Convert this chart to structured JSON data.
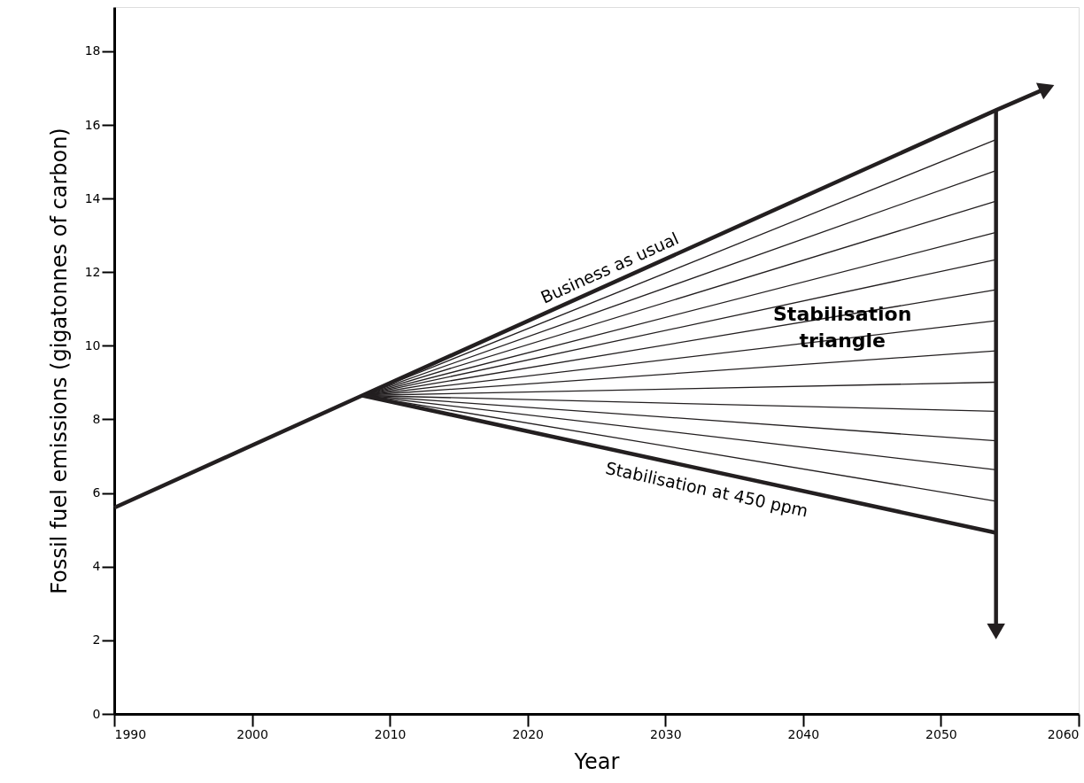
{
  "chart_data": {
    "type": "line",
    "xlabel": "Year",
    "ylabel": "Fossil fuel emissions (gigatonnes of carbon)",
    "xlim": [
      1990,
      2060
    ],
    "ylim": [
      0,
      19.2
    ],
    "xticks": [
      1990,
      2000,
      2010,
      2020,
      2030,
      2040,
      2050,
      2060
    ],
    "yticks": [
      0,
      2,
      4,
      6,
      8,
      10,
      12,
      14,
      16,
      18
    ],
    "grid": false,
    "line_style": "solid",
    "annotations": [
      "Stabilisation\ntriangle"
    ],
    "series": [
      {
        "name": "Business as usual",
        "color": "#231f20",
        "x": [
          1990,
          2008,
          2054,
          2057.7
        ],
        "values": [
          5.6,
          8.65,
          16.4,
          17.0
        ]
      },
      {
        "color": "#231f20",
        "x": [
          2008,
          2054
        ],
        "values": [
          8.65,
          15.6
        ]
      },
      {
        "color": "#231f20",
        "x": [
          2008,
          2054
        ],
        "values": [
          8.65,
          14.76
        ]
      },
      {
        "color": "#231f20",
        "x": [
          2008,
          2054
        ],
        "values": [
          8.65,
          13.93
        ]
      },
      {
        "color": "#231f20",
        "x": [
          2008,
          2054
        ],
        "values": [
          8.65,
          13.08
        ]
      },
      {
        "color": "#231f20",
        "x": [
          2008,
          2054
        ],
        "values": [
          8.65,
          12.34
        ]
      },
      {
        "color": "#231f20",
        "x": [
          2008,
          2054
        ],
        "values": [
          8.65,
          11.52
        ]
      },
      {
        "color": "#231f20",
        "x": [
          2008,
          2054
        ],
        "values": [
          8.65,
          10.68
        ]
      },
      {
        "color": "#231f20",
        "x": [
          2008,
          2054
        ],
        "values": [
          8.65,
          9.86
        ]
      },
      {
        "color": "#231f20",
        "x": [
          2008,
          2054
        ],
        "values": [
          8.65,
          9.01
        ]
      },
      {
        "color": "#231f20",
        "x": [
          2008,
          2054
        ],
        "values": [
          8.65,
          8.22
        ]
      },
      {
        "color": "#231f20",
        "x": [
          2008,
          2054
        ],
        "values": [
          8.65,
          7.42
        ]
      },
      {
        "color": "#231f20",
        "x": [
          2008,
          2054
        ],
        "values": [
          8.65,
          6.63
        ]
      },
      {
        "color": "#231f20",
        "x": [
          2008,
          2054
        ],
        "values": [
          8.65,
          5.78
        ]
      },
      {
        "name": "Stabilisation at 450 ppm",
        "color": "#231f20",
        "x": [
          2008,
          2054
        ],
        "values": [
          8.65,
          4.92
        ]
      },
      {
        "color": "#231f20",
        "x": [
          2054,
          2054
        ],
        "values": [
          16.4,
          2.24
        ]
      }
    ]
  }
}
